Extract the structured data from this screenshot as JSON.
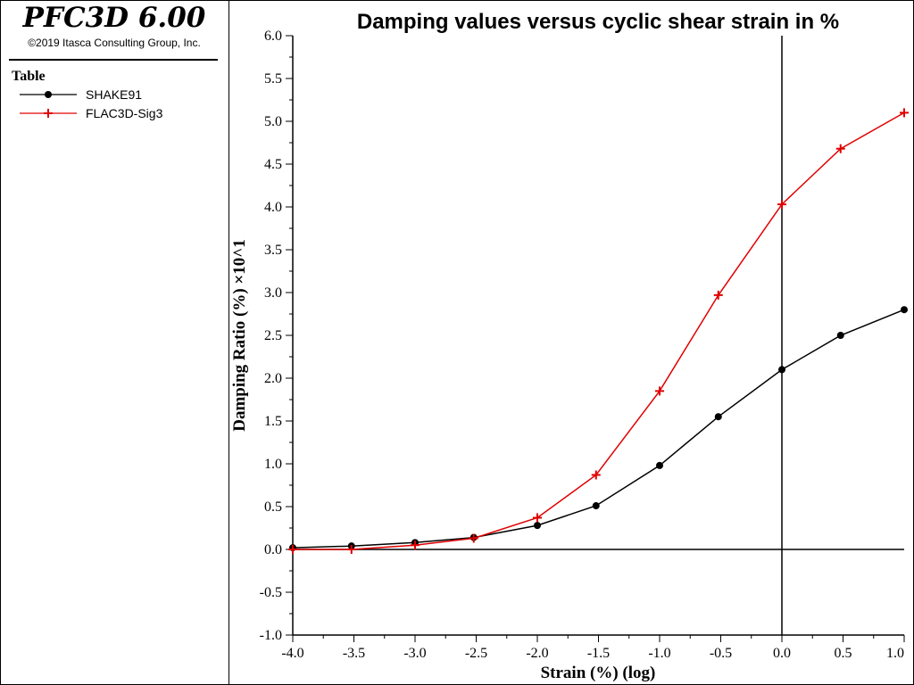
{
  "app": {
    "title": "PFC3D 6.00",
    "copyright": "©2019 Itasca Consulting Group, Inc."
  },
  "legend": {
    "heading": "Table",
    "items": [
      {
        "label": "SHAKE91",
        "color": "#000000",
        "marker": "circle"
      },
      {
        "label": "FLAC3D-Sig3",
        "color": "#e00000",
        "marker": "plus"
      }
    ]
  },
  "chart_data": {
    "type": "line",
    "title": "Damping values versus cyclic shear strain in %",
    "xlabel": "Strain (%) (log)",
    "ylabel": "Damping Ratio (%) ×10^1",
    "xlim": [
      -4.0,
      1.0
    ],
    "ylim": [
      -1.0,
      6.0
    ],
    "x_ticks": [
      "-4.0",
      "-3.5",
      "-3.0",
      "-2.5",
      "-2.0",
      "-1.5",
      "-1.0",
      "-0.5",
      "0.0",
      "0.5",
      "1.0"
    ],
    "y_ticks": [
      "-1.0",
      "-0.5",
      "0.0",
      "0.5",
      "1.0",
      "1.5",
      "2.0",
      "2.5",
      "3.0",
      "3.5",
      "4.0",
      "4.5",
      "5.0",
      "5.5",
      "6.0"
    ],
    "grid": false,
    "series": [
      {
        "name": "SHAKE91",
        "color": "#000000",
        "marker": "circle",
        "x": [
          -4.0,
          -3.52,
          -3.0,
          -2.52,
          -2.0,
          -1.52,
          -1.0,
          -0.52,
          0.0,
          0.48,
          1.0
        ],
        "y": [
          0.02,
          0.04,
          0.08,
          0.14,
          0.28,
          0.51,
          0.98,
          1.55,
          2.1,
          2.5,
          2.8
        ]
      },
      {
        "name": "FLAC3D-Sig3",
        "color": "#e00000",
        "marker": "plus",
        "x": [
          -4.0,
          -3.52,
          -3.0,
          -2.52,
          -2.0,
          -1.52,
          -1.0,
          -0.52,
          0.0,
          0.48,
          1.0
        ],
        "y": [
          0.0,
          0.0,
          0.05,
          0.13,
          0.37,
          0.87,
          1.85,
          2.97,
          4.03,
          4.68,
          5.1
        ]
      }
    ]
  }
}
